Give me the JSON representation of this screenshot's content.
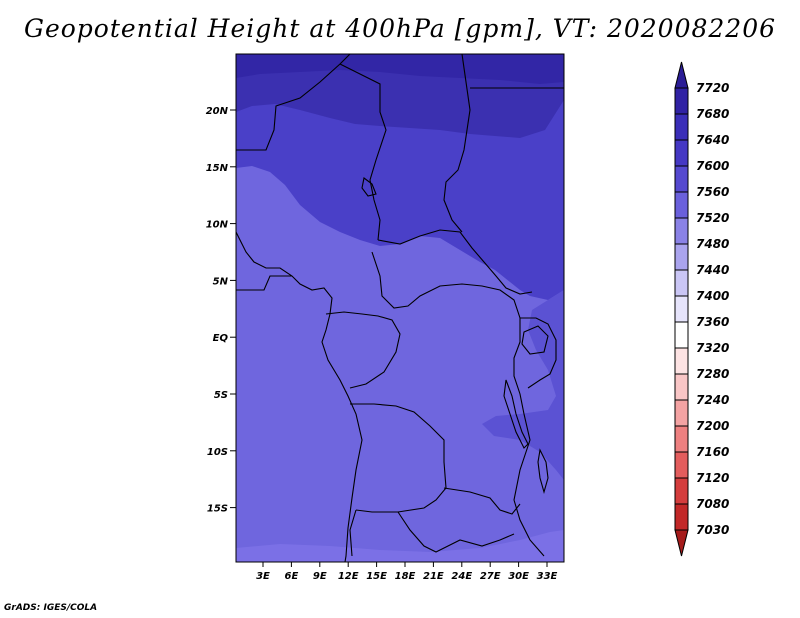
{
  "title": "Geopotential Height at 400hPa [gpm], VT: 2020082206",
  "credit": "GrADS: IGES/COLA",
  "colors": {
    "ocean_base": "#6f66de",
    "land_base": "#6f66de",
    "north_dark": "#3b30b0",
    "north_mid": "#4a40c8",
    "north_top": "#3226a6",
    "east_band": "#5b52d3",
    "south_light": "#7b70e6",
    "border": "#000000"
  },
  "map": {
    "y_ticks": [
      "20N",
      "15N",
      "10N",
      "5N",
      "EQ",
      "5S",
      "10S",
      "15S"
    ],
    "x_ticks": [
      "3E",
      "6E",
      "9E",
      "12E",
      "15E",
      "18E",
      "21E",
      "24E",
      "27E",
      "30E",
      "33E"
    ]
  },
  "colorbar": {
    "labels": [
      "7720",
      "7680",
      "7640",
      "7600",
      "7560",
      "7520",
      "7480",
      "7440",
      "7400",
      "7360",
      "7320",
      "7280",
      "7240",
      "7200",
      "7160",
      "7120",
      "7080",
      "7030"
    ],
    "colors": [
      "#2b1d96",
      "#3022a4",
      "#3a2eb8",
      "#4538c4",
      "#5549d0",
      "#6a60dc",
      "#8a82e6",
      "#aaa4ee",
      "#cac6f5",
      "#e6e4fb",
      "#ffffff",
      "#fde3e3",
      "#f9c6c6",
      "#f4a3a3",
      "#ee8080",
      "#e35d5d",
      "#d43d3d",
      "#c22828",
      "#a51b1b"
    ]
  }
}
